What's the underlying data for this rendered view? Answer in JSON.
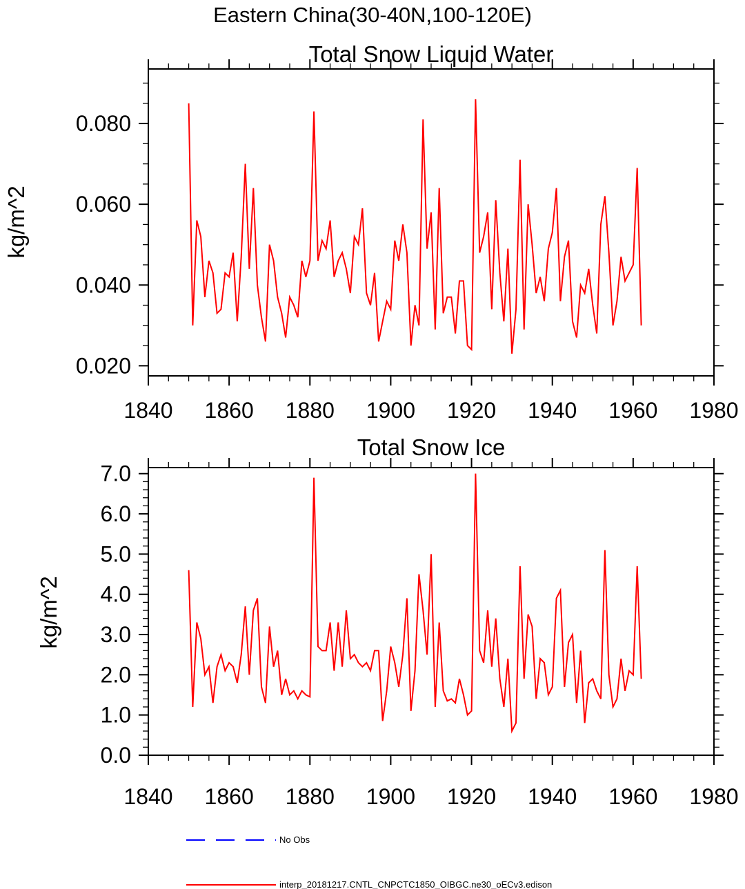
{
  "title": "Eastern China(30-40N,100-120E)",
  "chart_data": [
    {
      "type": "line",
      "title": "Total Snow Liquid Water",
      "ylabel": "kg/m^2",
      "xlabel": "",
      "line_color": "#ff0000",
      "xlim": [
        1840,
        1980
      ],
      "ylim": [
        0.0175,
        0.0935
      ],
      "xticks": [
        1840,
        1860,
        1880,
        1900,
        1920,
        1940,
        1960,
        1980
      ],
      "xminor_step": 5,
      "yticks": [
        0.02,
        0.04,
        0.06,
        0.08
      ],
      "ytick_labels": [
        "0.020",
        "0.040",
        "0.060",
        "0.080"
      ],
      "yminor_step": 0.005,
      "x_start": 1850,
      "x_end": 1962,
      "values": [
        0.085,
        0.03,
        0.056,
        0.052,
        0.037,
        0.046,
        0.043,
        0.033,
        0.034,
        0.043,
        0.042,
        0.048,
        0.031,
        0.047,
        0.07,
        0.044,
        0.064,
        0.04,
        0.032,
        0.026,
        0.05,
        0.046,
        0.037,
        0.033,
        0.027,
        0.037,
        0.035,
        0.032,
        0.046,
        0.042,
        0.046,
        0.083,
        0.046,
        0.051,
        0.049,
        0.056,
        0.042,
        0.046,
        0.048,
        0.044,
        0.038,
        0.052,
        0.05,
        0.059,
        0.038,
        0.035,
        0.043,
        0.026,
        0.031,
        0.036,
        0.034,
        0.051,
        0.046,
        0.055,
        0.048,
        0.025,
        0.035,
        0.03,
        0.081,
        0.049,
        0.058,
        0.029,
        0.064,
        0.033,
        0.037,
        0.037,
        0.028,
        0.041,
        0.041,
        0.025,
        0.024,
        0.086,
        0.048,
        0.052,
        0.058,
        0.034,
        0.061,
        0.043,
        0.031,
        0.049,
        0.023,
        0.034,
        0.071,
        0.029,
        0.06,
        0.05,
        0.038,
        0.042,
        0.036,
        0.049,
        0.053,
        0.064,
        0.036,
        0.047,
        0.051,
        0.031,
        0.027,
        0.04,
        0.038,
        0.044,
        0.035,
        0.028,
        0.055,
        0.062,
        0.048,
        0.03,
        0.036,
        0.047,
        0.041,
        0.043,
        0.045,
        0.069,
        0.03
      ]
    },
    {
      "type": "line",
      "title": "Total Snow Ice",
      "ylabel": "kg/m^2",
      "xlabel": "",
      "line_color": "#ff0000",
      "xlim": [
        1840,
        1980
      ],
      "ylim": [
        0.0,
        7.15
      ],
      "xticks": [
        1840,
        1860,
        1880,
        1900,
        1920,
        1940,
        1960,
        1980
      ],
      "xminor_step": 5,
      "yticks": [
        0.0,
        1.0,
        2.0,
        3.0,
        4.0,
        5.0,
        6.0,
        7.0
      ],
      "ytick_labels": [
        "0.0",
        "1.0",
        "2.0",
        "3.0",
        "4.0",
        "5.0",
        "6.0",
        "7.0"
      ],
      "yminor_step": 0.2,
      "x_start": 1850,
      "x_end": 1962,
      "values": [
        4.6,
        1.2,
        3.3,
        2.9,
        2.0,
        2.2,
        1.3,
        2.2,
        2.5,
        2.1,
        2.3,
        2.2,
        1.8,
        2.5,
        3.7,
        2.0,
        3.6,
        3.9,
        1.7,
        1.3,
        3.2,
        2.2,
        2.6,
        1.5,
        1.9,
        1.5,
        1.6,
        1.4,
        1.6,
        1.5,
        1.45,
        6.9,
        2.7,
        2.6,
        2.6,
        3.3,
        2.1,
        3.3,
        2.2,
        3.6,
        2.4,
        2.5,
        2.3,
        2.2,
        2.3,
        2.1,
        2.6,
        2.6,
        0.85,
        1.6,
        2.7,
        2.3,
        1.7,
        2.5,
        3.9,
        1.1,
        2.1,
        4.5,
        3.6,
        2.5,
        5.0,
        1.2,
        3.3,
        1.6,
        1.35,
        1.4,
        1.3,
        1.9,
        1.5,
        1.0,
        1.1,
        7.0,
        2.6,
        2.3,
        3.6,
        2.2,
        3.4,
        1.9,
        1.2,
        2.4,
        0.6,
        0.8,
        4.7,
        1.9,
        3.5,
        3.2,
        1.4,
        2.4,
        2.3,
        1.5,
        1.7,
        3.9,
        4.1,
        1.7,
        2.8,
        3.0,
        1.3,
        2.6,
        0.8,
        1.8,
        1.9,
        1.6,
        1.4,
        5.1,
        2.0,
        1.2,
        1.4,
        2.4,
        1.6,
        2.1,
        2.0,
        4.7,
        1.9
      ]
    }
  ],
  "legend": [
    {
      "label": "No Obs",
      "color": "#0000ff",
      "style": "dashed"
    },
    {
      "label": "interp_20181217.CNTL_CNPCTC1850_OIBGC.ne30_oECv3.edison",
      "color": "#ff0000",
      "style": "solid"
    }
  ]
}
